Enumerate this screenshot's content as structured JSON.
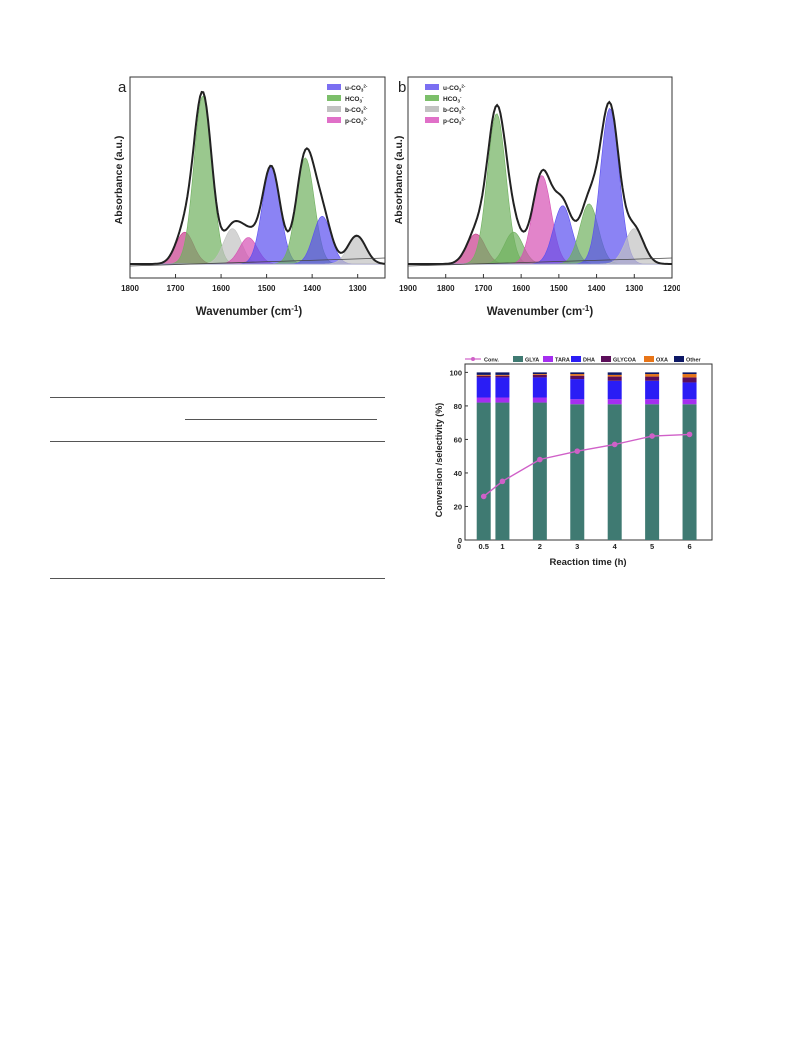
{
  "figures": {
    "panel_a": {
      "label": "a",
      "xlabel": "Wavenumber (cm",
      "xlabel_sup": "-1",
      "xlabel_end": ")",
      "ylabel": "Absorbance (a.u.)",
      "legend": [
        {
          "base": "u-CO",
          "sub": "3",
          "sup": "2-",
          "color": "#7b6ff2"
        },
        {
          "base": "HCO",
          "sub": "3",
          "sup": "-",
          "color": "#7cbf6a"
        },
        {
          "base": "b-CO",
          "sub": "3",
          "sup": "2-",
          "color": "#c2c2c2"
        },
        {
          "base": "p-CO",
          "sub": "3",
          "sup": "2-",
          "color": "#e070c8"
        }
      ]
    },
    "panel_b": {
      "label": "b",
      "xlabel": "Wavenumber (cm",
      "xlabel_sup": "-1",
      "xlabel_end": ")",
      "ylabel": "Absorbance (a.u.)",
      "legend": [
        {
          "base": "u-CO",
          "sub": "3",
          "sup": "2-",
          "color": "#7b6ff2"
        },
        {
          "base": "HCO",
          "sub": "3",
          "sup": "-",
          "color": "#7cbf6a"
        },
        {
          "base": "b-CO",
          "sub": "3",
          "sup": "2-",
          "color": "#c2c2c2"
        },
        {
          "base": "p-CO",
          "sub": "3",
          "sup": "2-",
          "color": "#e070c8"
        }
      ]
    }
  },
  "chart_data": [
    {
      "type": "area",
      "panel": "a",
      "xlabel": "Wavenumber (cm-1)",
      "ylabel": "Absorbance (a.u.)",
      "xlim": [
        1800,
        1240
      ],
      "x_ticks": [
        1800,
        1700,
        1600,
        1500,
        1400,
        1300
      ],
      "y_ticks_shown": false,
      "series": [
        {
          "name": "p-CO3 2-",
          "color": "#c83c8c",
          "center": 1680,
          "height": 0.18
        },
        {
          "name": "HCO3-",
          "color": "#6fb05e",
          "center": 1640,
          "height": 0.95
        },
        {
          "name": "b-CO3 2-",
          "color": "#c2c2c2",
          "center": 1575,
          "height": 0.2
        },
        {
          "name": "p-CO3 2-",
          "color": "#d650b4",
          "center": 1540,
          "height": 0.15
        },
        {
          "name": "u-CO3 2-",
          "color": "#5a4ff0",
          "center": 1490,
          "height": 0.55
        },
        {
          "name": "HCO3-",
          "color": "#6fb05e",
          "center": 1415,
          "height": 0.6
        },
        {
          "name": "u-CO3 2-",
          "color": "#5a4ff0",
          "center": 1378,
          "height": 0.27
        },
        {
          "name": "b-CO3 2-",
          "color": "#c2c2c2",
          "center": 1302,
          "height": 0.16
        }
      ]
    },
    {
      "type": "area",
      "panel": "b",
      "xlabel": "Wavenumber (cm-1)",
      "ylabel": "Absorbance (a.u.)",
      "xlim": [
        1900,
        1200
      ],
      "x_ticks": [
        1900,
        1800,
        1700,
        1600,
        1500,
        1400,
        1300,
        1200
      ],
      "y_ticks_shown": false,
      "series": [
        {
          "name": "p-CO3 2-",
          "color": "#c83c8c",
          "center": 1720,
          "height": 0.17
        },
        {
          "name": "HCO3-",
          "color": "#6fb05e",
          "center": 1665,
          "height": 0.85
        },
        {
          "name": "HCO3-",
          "color": "#6fb05e",
          "center": 1620,
          "height": 0.18
        },
        {
          "name": "p-CO3 2-",
          "color": "#d650b4",
          "center": 1545,
          "height": 0.5
        },
        {
          "name": "u-CO3 2-",
          "color": "#5a4ff0",
          "center": 1490,
          "height": 0.33
        },
        {
          "name": "HCO3-",
          "color": "#6fb05e",
          "center": 1420,
          "height": 0.34
        },
        {
          "name": "u-CO3 2-",
          "color": "#5a4ff0",
          "center": 1365,
          "height": 0.88
        },
        {
          "name": "b-CO3 2-",
          "color": "#c2c2c2",
          "center": 1300,
          "height": 0.2
        }
      ]
    },
    {
      "type": "bar",
      "stacked": true,
      "xlabel": "Reaction time (h)",
      "ylabel": "Conversion /selectivity (%)",
      "ylim": [
        0,
        105
      ],
      "y_ticks": [
        0,
        20,
        40,
        60,
        80,
        100
      ],
      "x_ticks": [
        "0",
        "0.5",
        "1",
        "2",
        "3",
        "4",
        "5",
        "6"
      ],
      "categories": [
        "0.5",
        "1",
        "2",
        "3",
        "4",
        "5",
        "6"
      ],
      "legend_labels": [
        "Conv.",
        "GLYA",
        "TARA",
        "DHA",
        "GLYCOA",
        "OXA",
        "Other"
      ],
      "series": [
        {
          "name": "GLYA",
          "color": "#3f7a72",
          "values": [
            82,
            82,
            82,
            81,
            81,
            81,
            81
          ]
        },
        {
          "name": "TARA",
          "color": "#a52ef0",
          "values": [
            3,
            3,
            3,
            3,
            3,
            3,
            3
          ]
        },
        {
          "name": "DHA",
          "color": "#2a1df5",
          "values": [
            12,
            12,
            12,
            12,
            11,
            11,
            10
          ]
        },
        {
          "name": "GLYCOA",
          "color": "#5c0e5a",
          "values": [
            1,
            1,
            1.5,
            2,
            2.5,
            2.5,
            3
          ]
        },
        {
          "name": "OXA",
          "color": "#e87518",
          "values": [
            0.5,
            0.5,
            0.5,
            1,
            1,
            1.5,
            2
          ]
        },
        {
          "name": "Other",
          "color": "#0d1866",
          "values": [
            1.5,
            1.5,
            1,
            1,
            1.5,
            1,
            1
          ]
        }
      ],
      "line": {
        "name": "Conv.",
        "color": "#d060c8",
        "x": [
          0.5,
          1,
          2,
          3,
          4,
          5,
          6
        ],
        "values": [
          26,
          35,
          48,
          53,
          57,
          62,
          63
        ]
      }
    }
  ]
}
